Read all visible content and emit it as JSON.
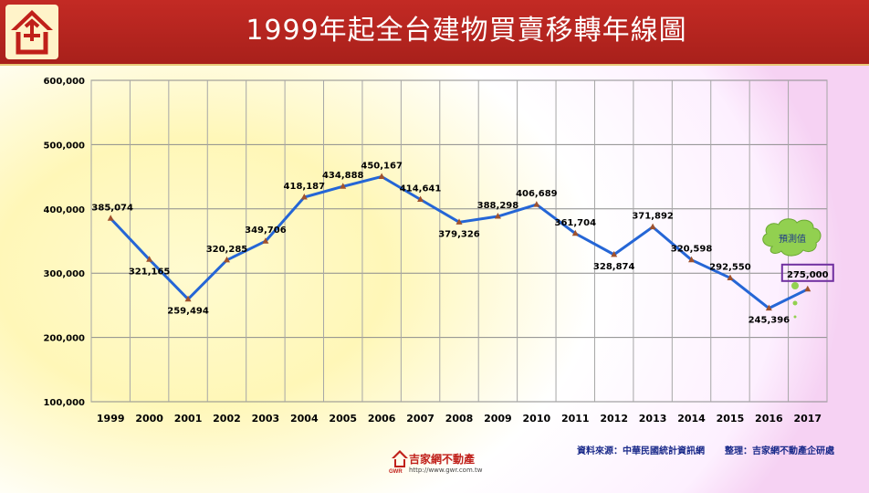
{
  "header": {
    "title": "1999年起全台建物買賣移轉年線圖"
  },
  "footer": {
    "source": "資料來源：中華民國統計資訊網",
    "compiled_by": "整理：吉家網不動產企研處",
    "brand_name": "吉家網不動產",
    "brand_abbr": "GWR",
    "brand_url": "http://www.gwr.com.tw"
  },
  "forecast_label": "預測值",
  "colors": {
    "header": "#b5221d",
    "line": "#2566d6",
    "marker": "#a0522d",
    "forecast_box": "#7030a0",
    "cloud": "#92d050"
  },
  "chart_data": {
    "type": "line",
    "title": "1999年起全台建物買賣移轉年線圖",
    "xlabel": "",
    "ylabel": "",
    "categories": [
      "1999",
      "2000",
      "2001",
      "2002",
      "2003",
      "2004",
      "2005",
      "2006",
      "2007",
      "2008",
      "2009",
      "2010",
      "2011",
      "2012",
      "2013",
      "2014",
      "2015",
      "2016",
      "2017"
    ],
    "values": [
      385074,
      321165,
      259494,
      320285,
      349706,
      418187,
      434888,
      450167,
      414641,
      379326,
      388298,
      406689,
      361704,
      328874,
      371892,
      320598,
      292550,
      245396,
      275000
    ],
    "data_labels": [
      "385,074",
      "321,165",
      "259,494",
      "320,285",
      "349,706",
      "418,187",
      "434,888",
      "450,167",
      "414,641",
      "379,326",
      "388,298",
      "406,689",
      "361,704",
      "328,874",
      "371,892",
      "320,598",
      "292,550",
      "245,396",
      "275,000"
    ],
    "y_ticks": [
      "100,000",
      "200,000",
      "300,000",
      "400,000",
      "500,000",
      "600,000"
    ],
    "ylim": [
      100000,
      600000
    ],
    "grid": true,
    "forecast_index": 18
  }
}
